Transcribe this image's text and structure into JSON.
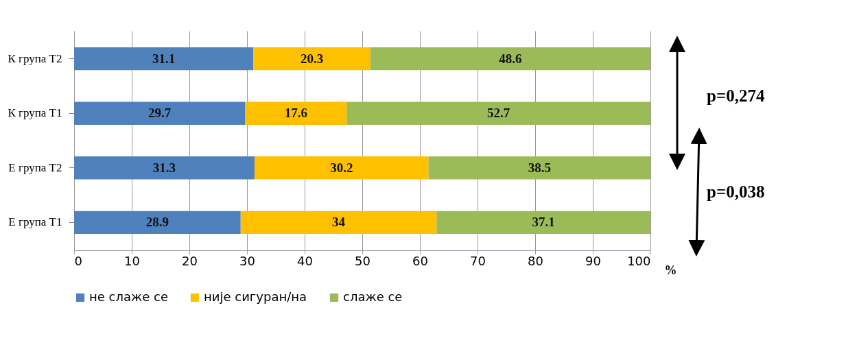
{
  "chart_data": {
    "type": "bar",
    "orientation": "horizontal",
    "stacked": true,
    "data_labels": true,
    "categories": [
      "К група Т2",
      "К група Т1",
      "Е група Т2",
      "Е група Т1"
    ],
    "series": [
      {
        "name": "не слаже се",
        "color": "#4f81bd",
        "values": [
          31.1,
          29.7,
          31.3,
          28.9
        ]
      },
      {
        "name": "није сигуран/на",
        "color": "#ffc000",
        "values": [
          20.3,
          17.6,
          30.2,
          34
        ]
      },
      {
        "name": "слаже се",
        "color": "#9bbb59",
        "values": [
          48.6,
          52.7,
          38.5,
          37.1
        ]
      }
    ],
    "xlim": [
      0,
      100
    ],
    "xticks": [
      0,
      10,
      20,
      30,
      40,
      50,
      60,
      70,
      80,
      90,
      100
    ],
    "xlabel": "%",
    "grid": "x",
    "legend": "bottom",
    "annotations": [
      "p=0,274",
      "p=0,038"
    ]
  }
}
